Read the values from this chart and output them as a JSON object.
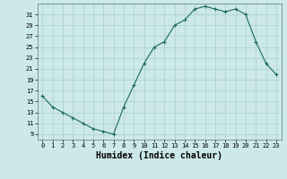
{
  "x": [
    0,
    1,
    2,
    3,
    4,
    5,
    6,
    7,
    8,
    9,
    10,
    11,
    12,
    13,
    14,
    15,
    16,
    17,
    18,
    19,
    20,
    21,
    22,
    23
  ],
  "y": [
    16,
    14,
    13,
    12,
    11,
    10,
    9.5,
    9,
    14,
    18,
    22,
    25,
    26,
    29,
    30,
    32,
    32.5,
    32,
    31.5,
    32,
    31,
    26,
    22,
    20
  ],
  "line_color": "#1a6b5a",
  "marker": "+",
  "marker_color": "#1a6b5a",
  "bg_color": "#cce8e8",
  "grid_color": "#aacfcf",
  "xlabel": "Humidex (Indice chaleur)",
  "xlabel_fontsize": 7,
  "tick_fontsize": 5,
  "ylabel_ticks": [
    9,
    11,
    13,
    15,
    17,
    19,
    21,
    23,
    25,
    27,
    29,
    31
  ],
  "xticks": [
    0,
    1,
    2,
    3,
    4,
    5,
    6,
    7,
    8,
    9,
    10,
    11,
    12,
    13,
    14,
    15,
    16,
    17,
    18,
    19,
    20,
    21,
    22,
    23
  ],
  "xlim": [
    -0.5,
    23.5
  ],
  "ylim": [
    8.0,
    33.0
  ]
}
